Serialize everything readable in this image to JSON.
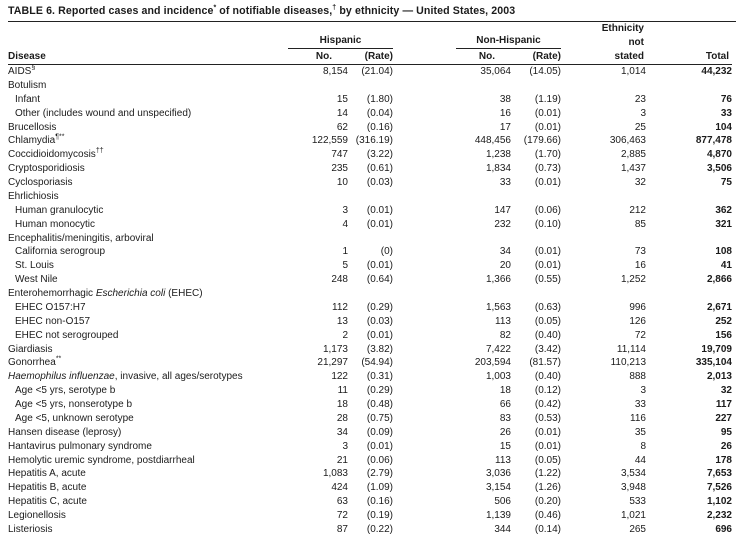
{
  "title": {
    "parts": [
      {
        "text": "TABLE 6. Reported cases and incidence"
      },
      {
        "text": "*",
        "sup": true
      },
      {
        "text": " of notifiable diseases,"
      },
      {
        "text": "†",
        "sup": true
      },
      {
        "text": " by ethnicity — United States, 2003"
      }
    ]
  },
  "header": {
    "disease": "Disease",
    "hispanic": "Hispanic",
    "non_hispanic": "Non-Hispanic",
    "no": "No.",
    "rate": "(Rate)",
    "ethnicity_line1": "Ethnicity",
    "ethnicity_line2": "not",
    "ethnicity_line3": "stated",
    "total": "Total"
  },
  "rows": [
    {
      "name": [
        {
          "text": "AIDS"
        },
        {
          "text": "§",
          "sup": true
        }
      ],
      "indent": 0,
      "values": [
        "8,154",
        "(21.04)",
        "35,064",
        "(14.05)",
        "1,014",
        "44,232"
      ]
    },
    {
      "name": [
        {
          "text": "Botulism"
        }
      ],
      "indent": 0,
      "values": [
        "",
        "",
        "",
        "",
        "",
        ""
      ]
    },
    {
      "name": [
        {
          "text": "Infant"
        }
      ],
      "indent": 1,
      "values": [
        "15",
        "(1.80)",
        "38",
        "(1.19)",
        "23",
        "76"
      ]
    },
    {
      "name": [
        {
          "text": "Other (includes wound and unspecified)"
        }
      ],
      "indent": 1,
      "values": [
        "14",
        "(0.04)",
        "16",
        "(0.01)",
        "3",
        "33"
      ]
    },
    {
      "name": [
        {
          "text": "Brucellosis"
        }
      ],
      "indent": 0,
      "values": [
        "62",
        "(0.16)",
        "17",
        "(0.01)",
        "25",
        "104"
      ]
    },
    {
      "name": [
        {
          "text": "Chlamydia"
        },
        {
          "text": "¶**",
          "sup": true
        }
      ],
      "indent": 0,
      "values": [
        "122,559",
        "(316.19)",
        "448,456",
        "(179.66)",
        "306,463",
        "877,478"
      ]
    },
    {
      "name": [
        {
          "text": "Coccidioidomycosis"
        },
        {
          "text": "††",
          "sup": true
        }
      ],
      "indent": 0,
      "values": [
        "747",
        "(3.22)",
        "1,238",
        "(1.70)",
        "2,885",
        "4,870"
      ]
    },
    {
      "name": [
        {
          "text": "Cryptosporidiosis"
        }
      ],
      "indent": 0,
      "values": [
        "235",
        "(0.61)",
        "1,834",
        "(0.73)",
        "1,437",
        "3,506"
      ]
    },
    {
      "name": [
        {
          "text": "Cyclosporiasis"
        }
      ],
      "indent": 0,
      "values": [
        "10",
        "(0.03)",
        "33",
        "(0.01)",
        "32",
        "75"
      ]
    },
    {
      "name": [
        {
          "text": "Ehrlichiosis"
        }
      ],
      "indent": 0,
      "values": [
        "",
        "",
        "",
        "",
        "",
        ""
      ]
    },
    {
      "name": [
        {
          "text": "Human granulocytic"
        }
      ],
      "indent": 1,
      "values": [
        "3",
        "(0.01)",
        "147",
        "(0.06)",
        "212",
        "362"
      ]
    },
    {
      "name": [
        {
          "text": "Human monocytic"
        }
      ],
      "indent": 1,
      "values": [
        "4",
        "(0.01)",
        "232",
        "(0.10)",
        "85",
        "321"
      ]
    },
    {
      "name": [
        {
          "text": "Encephalitis/meningitis, arboviral"
        }
      ],
      "indent": 0,
      "values": [
        "",
        "",
        "",
        "",
        "",
        ""
      ]
    },
    {
      "name": [
        {
          "text": "California serogroup"
        }
      ],
      "indent": 1,
      "values": [
        "1",
        "(0)",
        "34",
        "(0.01)",
        "73",
        "108"
      ]
    },
    {
      "name": [
        {
          "text": "St. Louis"
        }
      ],
      "indent": 1,
      "values": [
        "5",
        "(0.01)",
        "20",
        "(0.01)",
        "16",
        "41"
      ]
    },
    {
      "name": [
        {
          "text": "West Nile"
        }
      ],
      "indent": 1,
      "values": [
        "248",
        "(0.64)",
        "1,366",
        "(0.55)",
        "1,252",
        "2,866"
      ]
    },
    {
      "name": [
        {
          "text": "Enterohemorrhagic "
        },
        {
          "text": "Escherichia coli",
          "italic": true
        },
        {
          "text": " (EHEC)"
        }
      ],
      "indent": 0,
      "values": [
        "",
        "",
        "",
        "",
        "",
        ""
      ]
    },
    {
      "name": [
        {
          "text": "EHEC O157:H7"
        }
      ],
      "indent": 1,
      "values": [
        "112",
        "(0.29)",
        "1,563",
        "(0.63)",
        "996",
        "2,671"
      ]
    },
    {
      "name": [
        {
          "text": "EHEC non-O157"
        }
      ],
      "indent": 1,
      "values": [
        "13",
        "(0.03)",
        "113",
        "(0.05)",
        "126",
        "252"
      ]
    },
    {
      "name": [
        {
          "text": "EHEC not serogrouped"
        }
      ],
      "indent": 1,
      "values": [
        "2",
        "(0.01)",
        "82",
        "(0.40)",
        "72",
        "156"
      ]
    },
    {
      "name": [
        {
          "text": "Giardiasis"
        }
      ],
      "indent": 0,
      "values": [
        "1,173",
        "(3.82)",
        "7,422",
        "(3.42)",
        "11,114",
        "19,709"
      ]
    },
    {
      "name": [
        {
          "text": "Gonorrhea"
        },
        {
          "text": "**",
          "sup": true
        }
      ],
      "indent": 0,
      "values": [
        "21,297",
        "(54.94)",
        "203,594",
        "(81.57)",
        "110,213",
        "335,104"
      ]
    },
    {
      "name": [
        {
          "text": "Haemophilus influenzae",
          "italic": true
        },
        {
          "text": ", invasive, all ages/serotypes"
        }
      ],
      "indent": 0,
      "values": [
        "122",
        "(0.31)",
        "1,003",
        "(0.40)",
        "888",
        "2,013"
      ]
    },
    {
      "name": [
        {
          "text": "Age <5 yrs, serotype b"
        }
      ],
      "indent": 1,
      "values": [
        "11",
        "(0.29)",
        "18",
        "(0.12)",
        "3",
        "32"
      ]
    },
    {
      "name": [
        {
          "text": "Age <5 yrs, nonserotype b"
        }
      ],
      "indent": 1,
      "values": [
        "18",
        "(0.48)",
        "66",
        "(0.42)",
        "33",
        "117"
      ]
    },
    {
      "name": [
        {
          "text": "Age <5, unknown serotype"
        }
      ],
      "indent": 1,
      "values": [
        "28",
        "(0.75)",
        "83",
        "(0.53)",
        "116",
        "227"
      ]
    },
    {
      "name": [
        {
          "text": "Hansen disease (leprosy)"
        }
      ],
      "indent": 0,
      "values": [
        "34",
        "(0.09)",
        "26",
        "(0.01)",
        "35",
        "95"
      ]
    },
    {
      "name": [
        {
          "text": "Hantavirus pulmonary syndrome"
        }
      ],
      "indent": 0,
      "values": [
        "3",
        "(0.01)",
        "15",
        "(0.01)",
        "8",
        "26"
      ]
    },
    {
      "name": [
        {
          "text": "Hemolytic uremic syndrome, postdiarrheal"
        }
      ],
      "indent": 0,
      "values": [
        "21",
        "(0.06)",
        "113",
        "(0.05)",
        "44",
        "178"
      ]
    },
    {
      "name": [
        {
          "text": "Hepatitis A, acute"
        }
      ],
      "indent": 0,
      "values": [
        "1,083",
        "(2.79)",
        "3,036",
        "(1.22)",
        "3,534",
        "7,653"
      ]
    },
    {
      "name": [
        {
          "text": "Hepatitis B, acute"
        }
      ],
      "indent": 0,
      "values": [
        "424",
        "(1.09)",
        "3,154",
        "(1.26)",
        "3,948",
        "7,526"
      ]
    },
    {
      "name": [
        {
          "text": "Hepatitis C, acute"
        }
      ],
      "indent": 0,
      "values": [
        "63",
        "(0.16)",
        "506",
        "(0.20)",
        "533",
        "1,102"
      ]
    },
    {
      "name": [
        {
          "text": "Legionellosis"
        }
      ],
      "indent": 0,
      "values": [
        "72",
        "(0.19)",
        "1,139",
        "(0.46)",
        "1,021",
        "2,232"
      ]
    },
    {
      "name": [
        {
          "text": "Listeriosis"
        }
      ],
      "indent": 0,
      "values": [
        "87",
        "(0.22)",
        "344",
        "(0.14)",
        "265",
        "696"
      ]
    }
  ]
}
